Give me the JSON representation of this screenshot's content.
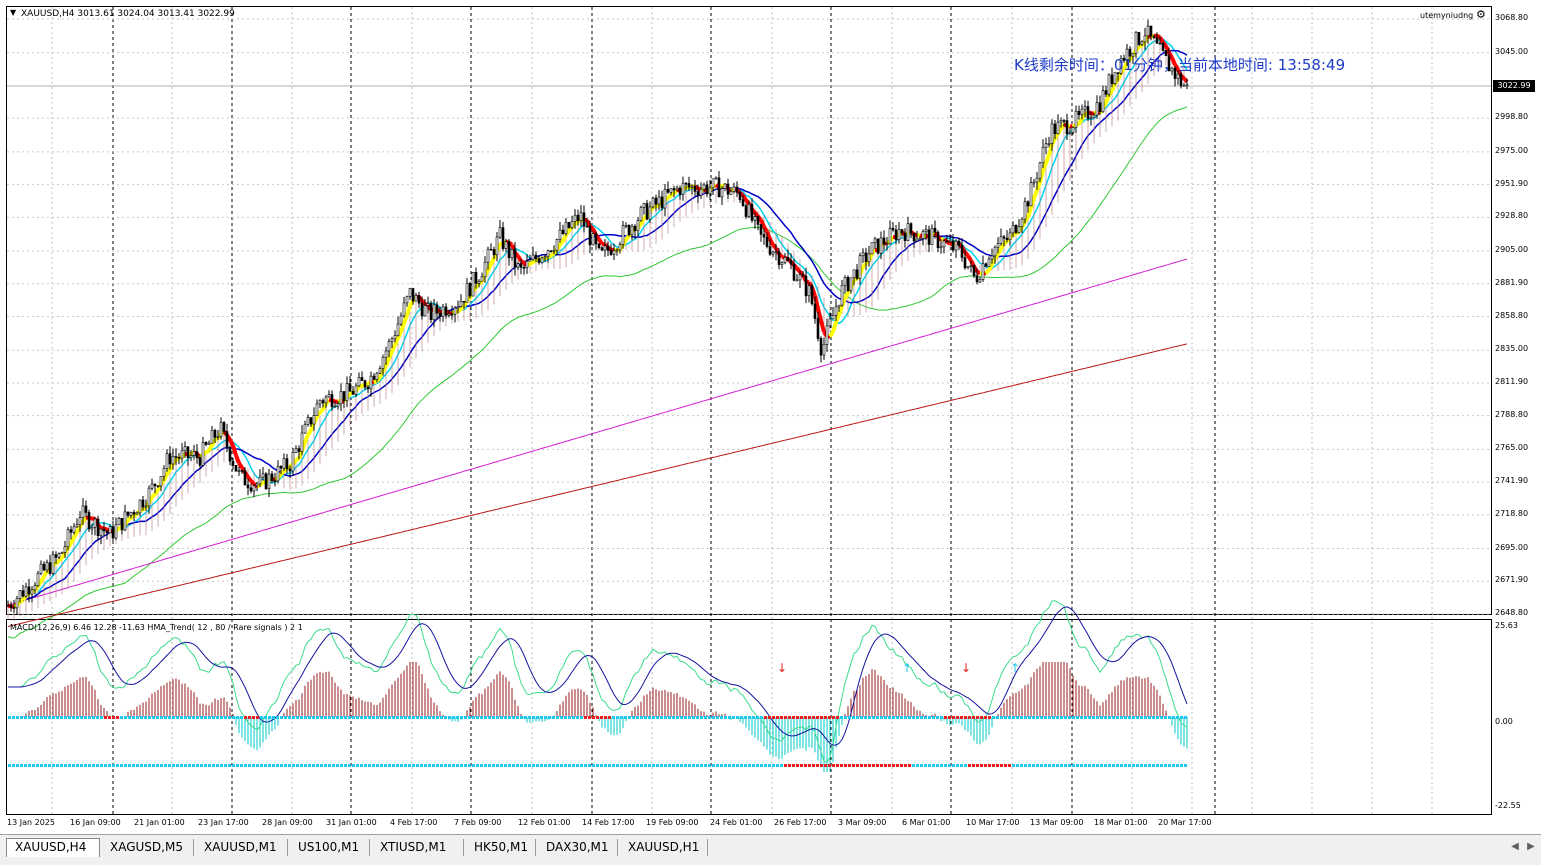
{
  "main_chart": {
    "header": "XAUUSD,H4  3013.61 3024.04 3013.41 3022.99",
    "account_label": "utemyniudng",
    "timer_text": "K线剩余时间：01分钟，当前本地时间: 13:58:49",
    "current_price": "3022.99",
    "price_ticks": [
      "3068.80",
      "3045.00",
      "2998.80",
      "2975.00",
      "2951.90",
      "2928.80",
      "2905.00",
      "2881.90",
      "2858.80",
      "2835.00",
      "2811.90",
      "2788.80",
      "2765.00",
      "2741.90",
      "2718.80",
      "2695.00",
      "2671.90",
      "2648.80"
    ]
  },
  "indicator": {
    "header": "MACD(12,26,9) 6.46 12.28 -11.63  HMA_Trend( 12 , 80 / Rare signals ) 2 1",
    "ticks": [
      "25.63",
      "0.00",
      "-22.55"
    ]
  },
  "time_labels": [
    "13 Jan 2025",
    "16 Jan 09:00",
    "21 Jan 01:00",
    "23 Jan 17:00",
    "28 Jan 09:00",
    "31 Jan 01:00",
    "4 Feb 17:00",
    "7 Feb 09:00",
    "12 Feb 01:00",
    "14 Feb 17:00",
    "19 Feb 09:00",
    "24 Feb 01:00",
    "26 Feb 17:00",
    "3 Mar 09:00",
    "6 Mar 01:00",
    "10 Mar 17:00",
    "13 Mar 09:00",
    "18 Mar 01:00",
    "20 Mar 17:00"
  ],
  "tabs": [
    "XAUUSD,H4",
    "XAGUSD,M5",
    "XAUUSD,M1",
    "US100,M1",
    "XTIUSD,M1",
    "HK50,M1",
    "DAX30,M1",
    "XAUUSD,H1"
  ],
  "colors": {
    "candle": "#000000",
    "ribbon_up": "#ffff00",
    "ribbon_down": "#ff0000",
    "cyan_ma": "#00d2f0",
    "navy_ma": "#0000c8",
    "green_ma": "#32c832",
    "magenta_ma": "#d21ed2",
    "red_ma": "#b41414",
    "macd_up": "#961e1e",
    "macd_down": "#00c8c8"
  },
  "icons": {
    "collapse": "triangle-down-icon",
    "settings": "gear-icon",
    "scroll_left": "chevron-left-icon",
    "scroll_right": "chevron-right-icon"
  }
}
